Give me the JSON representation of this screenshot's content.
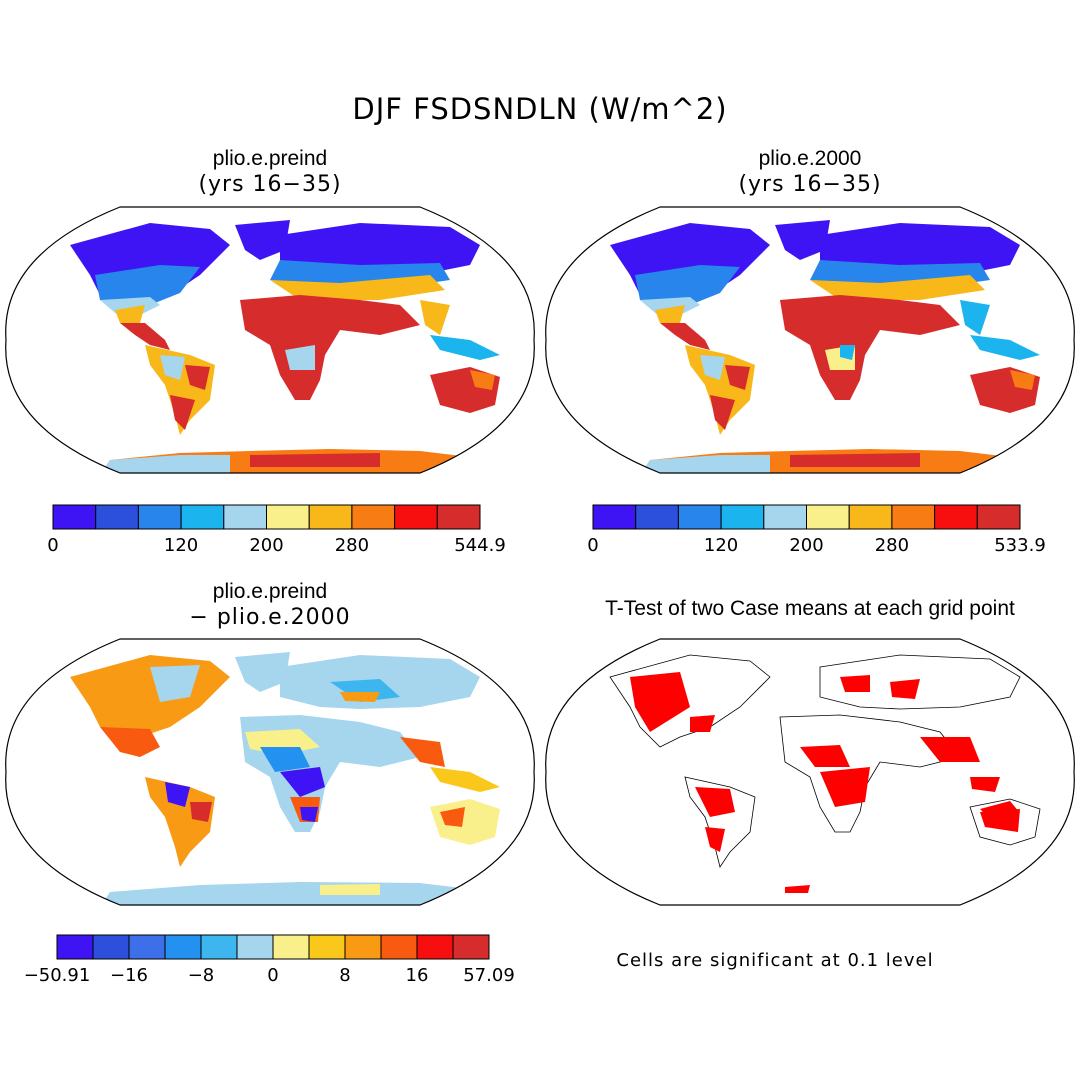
{
  "title": "DJF FSDSNDLN (W/m^2)",
  "panels": [
    {
      "title": "plio.e.preind",
      "subtitle": "(yrs 16−35)"
    },
    {
      "title": "plio.e.2000",
      "subtitle": "(yrs 16−35)"
    },
    {
      "title": "plio.e.preind",
      "subtitle": "− plio.e.2000"
    },
    {
      "title": "T-Test of two Case means at each grid point",
      "subtitle": ""
    }
  ],
  "colorbars": [
    {
      "colors": [
        "#3e14f5",
        "#2d50dc",
        "#2885eb",
        "#1bb4ee",
        "#a6d5ee",
        "#f9f08c",
        "#f9b81a",
        "#f87c14",
        "#f70f0f",
        "#d62c2c"
      ],
      "labels": [
        "0",
        "120",
        "200",
        "280",
        "544.9"
      ],
      "label_boundaries": [
        0,
        3,
        5,
        7,
        10
      ]
    },
    {
      "colors": [
        "#3e14f5",
        "#2d50dc",
        "#2885eb",
        "#1bb4ee",
        "#a6d5ee",
        "#f9f08c",
        "#f9b81a",
        "#f87c14",
        "#f70f0f",
        "#d62c2c"
      ],
      "labels": [
        "0",
        "120",
        "200",
        "280",
        "533.9"
      ],
      "label_boundaries": [
        0,
        3,
        5,
        7,
        10
      ]
    },
    {
      "colors": [
        "#3e14f5",
        "#2d50dc",
        "#3d6fe8",
        "#2291f0",
        "#3db6ef",
        "#a6d5ee",
        "#f9f08c",
        "#f9c81a",
        "#f89a14",
        "#f85a10",
        "#f70f0f",
        "#d62c2c"
      ],
      "labels": [
        "−50.91",
        "−16",
        "−8",
        "0",
        "8",
        "16",
        "57.09"
      ],
      "label_boundaries": [
        0,
        2,
        4,
        6,
        8,
        10,
        12
      ]
    }
  ],
  "note": "Cells are significant at 0.1 level",
  "significance_color": "#ff0000"
}
